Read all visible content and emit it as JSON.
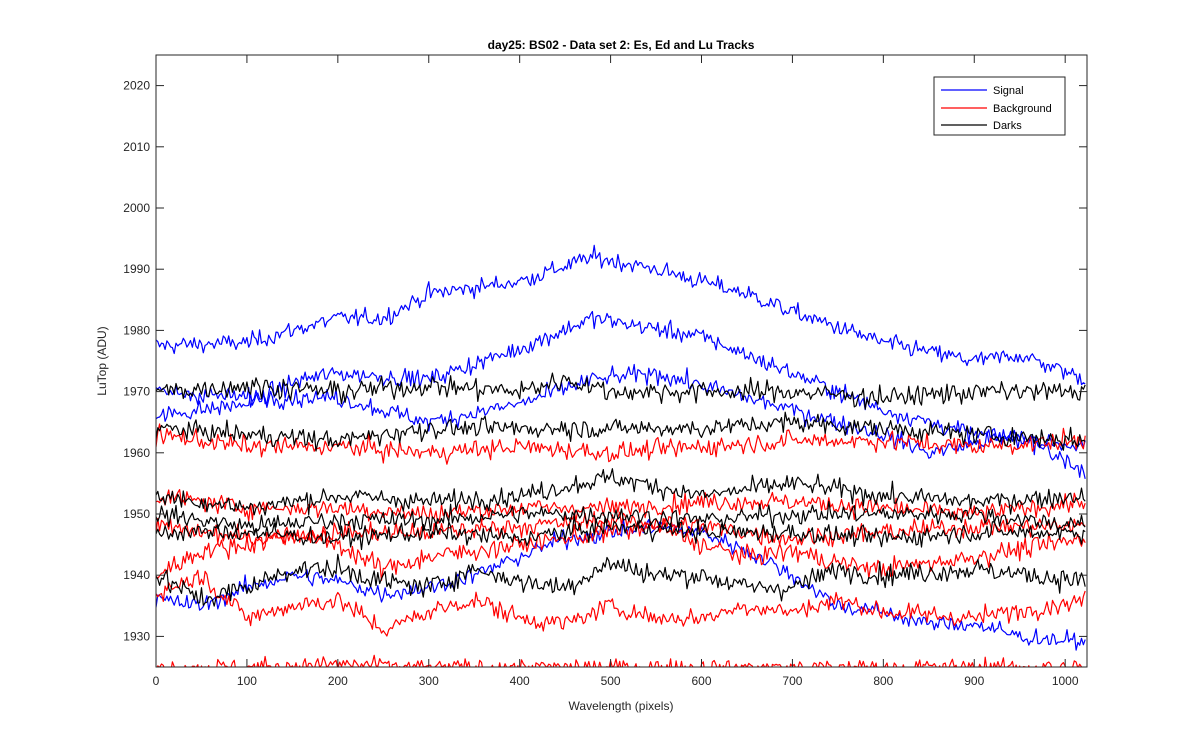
{
  "chart_data": {
    "type": "line",
    "title": "day25: BS02 - Data set 2: Es, Ed and Lu Tracks",
    "xlabel": "Wavelength (pixels)",
    "ylabel": "LuTop (ADU)",
    "xlim": [
      0,
      1024
    ],
    "ylim": [
      1925,
      2025
    ],
    "x_start": 0,
    "x_end": 1023,
    "x_step": 2,
    "xticks": [
      0,
      100,
      200,
      300,
      400,
      500,
      600,
      700,
      800,
      900,
      1000
    ],
    "yticks": [
      1930,
      1940,
      1950,
      1960,
      1970,
      1980,
      1990,
      2000,
      2010,
      2020
    ],
    "grid": false,
    "legend": {
      "placement": "top-right",
      "entries": [
        "Signal",
        "Background",
        "Darks"
      ]
    },
    "colors": {
      "Signal": "#0000ff",
      "Background": "#ff0000",
      "Darks": "#000000"
    },
    "series": [
      {
        "group": "Signal",
        "noise": 1.0,
        "knots": [
          [
            0,
            1977.5
          ],
          [
            100,
            1978
          ],
          [
            150,
            1980
          ],
          [
            200,
            1982
          ],
          [
            250,
            1982
          ],
          [
            300,
            1986
          ],
          [
            400,
            1988
          ],
          [
            480,
            1992
          ],
          [
            550,
            1990
          ],
          [
            650,
            1986
          ],
          [
            700,
            1983
          ],
          [
            800,
            1978
          ],
          [
            900,
            1975
          ],
          [
            950,
            1976
          ],
          [
            1023,
            1972
          ]
        ]
      },
      {
        "group": "Signal",
        "noise": 1.0,
        "knots": [
          [
            0,
            1966
          ],
          [
            100,
            1968
          ],
          [
            160,
            1972
          ],
          [
            200,
            1973
          ],
          [
            300,
            1972
          ],
          [
            400,
            1977
          ],
          [
            480,
            1982
          ],
          [
            600,
            1979
          ],
          [
            700,
            1973
          ],
          [
            800,
            1967
          ],
          [
            900,
            1963
          ],
          [
            1023,
            1961
          ]
        ]
      },
      {
        "group": "Signal",
        "noise": 1.0,
        "knots": [
          [
            0,
            1970
          ],
          [
            100,
            1969
          ],
          [
            200,
            1969
          ],
          [
            300,
            1965
          ],
          [
            400,
            1968
          ],
          [
            480,
            1972
          ],
          [
            550,
            1973
          ],
          [
            600,
            1971
          ],
          [
            700,
            1967
          ],
          [
            800,
            1963
          ],
          [
            850,
            1960
          ],
          [
            950,
            1963
          ],
          [
            1023,
            1957
          ]
        ]
      },
      {
        "group": "Signal",
        "noise": 1.0,
        "knots": [
          [
            0,
            1936
          ],
          [
            50,
            1935
          ],
          [
            100,
            1938
          ],
          [
            150,
            1940
          ],
          [
            200,
            1939
          ],
          [
            250,
            1937
          ],
          [
            300,
            1938
          ],
          [
            350,
            1940
          ],
          [
            400,
            1943
          ],
          [
            450,
            1946
          ],
          [
            500,
            1947
          ],
          [
            550,
            1948
          ],
          [
            600,
            1947
          ],
          [
            650,
            1944
          ],
          [
            700,
            1940
          ],
          [
            750,
            1935
          ],
          [
            800,
            1934
          ],
          [
            850,
            1932
          ],
          [
            900,
            1932
          ],
          [
            950,
            1930
          ],
          [
            1023,
            1929
          ]
        ]
      },
      {
        "group": "Background",
        "noise": 1.1,
        "knots": [
          [
            0,
            1963
          ],
          [
            100,
            1961
          ],
          [
            200,
            1961
          ],
          [
            300,
            1960
          ],
          [
            400,
            1961
          ],
          [
            500,
            1960
          ],
          [
            600,
            1961
          ],
          [
            700,
            1962
          ],
          [
            800,
            1962
          ],
          [
            900,
            1961
          ],
          [
            1023,
            1962
          ]
        ]
      },
      {
        "group": "Background",
        "noise": 1.1,
        "knots": [
          [
            0,
            1953
          ],
          [
            100,
            1951
          ],
          [
            200,
            1951
          ],
          [
            300,
            1950
          ],
          [
            400,
            1951
          ],
          [
            500,
            1951
          ],
          [
            600,
            1952
          ],
          [
            700,
            1952
          ],
          [
            800,
            1951
          ],
          [
            900,
            1950
          ],
          [
            1023,
            1952
          ]
        ]
      },
      {
        "group": "Background",
        "noise": 1.1,
        "knots": [
          [
            0,
            1948
          ],
          [
            100,
            1946
          ],
          [
            200,
            1947
          ],
          [
            300,
            1947
          ],
          [
            400,
            1948
          ],
          [
            500,
            1949
          ],
          [
            600,
            1948
          ],
          [
            700,
            1946
          ],
          [
            800,
            1947
          ],
          [
            900,
            1948
          ],
          [
            1023,
            1948
          ]
        ]
      },
      {
        "group": "Background",
        "noise": 1.1,
        "knots": [
          [
            0,
            1940
          ],
          [
            50,
            1944
          ],
          [
            100,
            1945
          ],
          [
            150,
            1947
          ],
          [
            200,
            1945
          ],
          [
            250,
            1941
          ],
          [
            300,
            1943
          ],
          [
            400,
            1945
          ],
          [
            500,
            1947
          ],
          [
            550,
            1948
          ],
          [
            600,
            1945
          ],
          [
            650,
            1943
          ],
          [
            700,
            1944
          ],
          [
            750,
            1942
          ],
          [
            800,
            1941
          ],
          [
            900,
            1943
          ],
          [
            1023,
            1946
          ]
        ]
      },
      {
        "group": "Background",
        "noise": 1.1,
        "knots": [
          [
            0,
            1937
          ],
          [
            50,
            1940
          ],
          [
            100,
            1933
          ],
          [
            150,
            1935
          ],
          [
            200,
            1936
          ],
          [
            250,
            1931
          ],
          [
            300,
            1934
          ],
          [
            350,
            1936
          ],
          [
            400,
            1933
          ],
          [
            450,
            1932
          ],
          [
            500,
            1935
          ],
          [
            550,
            1933
          ],
          [
            600,
            1933
          ],
          [
            650,
            1935
          ],
          [
            700,
            1934
          ],
          [
            750,
            1936
          ],
          [
            800,
            1934
          ],
          [
            900,
            1933
          ],
          [
            1023,
            1936
          ]
        ]
      },
      {
        "group": "Background",
        "noise": 0.9,
        "knots": [
          [
            0,
            1925
          ],
          [
            100,
            1925
          ],
          [
            200,
            1925.5
          ],
          [
            300,
            1925
          ],
          [
            400,
            1925
          ],
          [
            500,
            1925
          ],
          [
            600,
            1925
          ],
          [
            700,
            1925
          ],
          [
            800,
            1925
          ],
          [
            900,
            1925
          ],
          [
            1023,
            1925
          ]
        ]
      },
      {
        "group": "Darks",
        "noise": 1.2,
        "knots": [
          [
            0,
            1970
          ],
          [
            100,
            1971
          ],
          [
            200,
            1970
          ],
          [
            300,
            1971
          ],
          [
            400,
            1970
          ],
          [
            450,
            1972
          ],
          [
            500,
            1970
          ],
          [
            600,
            1970
          ],
          [
            700,
            1970
          ],
          [
            800,
            1969
          ],
          [
            900,
            1970
          ],
          [
            1023,
            1970
          ]
        ]
      },
      {
        "group": "Darks",
        "noise": 1.1,
        "knots": [
          [
            0,
            1964
          ],
          [
            100,
            1963
          ],
          [
            200,
            1962
          ],
          [
            300,
            1964
          ],
          [
            400,
            1964
          ],
          [
            500,
            1964
          ],
          [
            600,
            1964
          ],
          [
            700,
            1965
          ],
          [
            800,
            1964
          ],
          [
            900,
            1963
          ],
          [
            1023,
            1962
          ]
        ]
      },
      {
        "group": "Darks",
        "noise": 1.1,
        "knots": [
          [
            0,
            1953
          ],
          [
            100,
            1951
          ],
          [
            200,
            1953
          ],
          [
            300,
            1952
          ],
          [
            400,
            1953
          ],
          [
            500,
            1956
          ],
          [
            600,
            1953
          ],
          [
            700,
            1955
          ],
          [
            800,
            1953
          ],
          [
            900,
            1952
          ],
          [
            1023,
            1953
          ]
        ]
      },
      {
        "group": "Darks",
        "noise": 1.1,
        "knots": [
          [
            0,
            1950
          ],
          [
            100,
            1948
          ],
          [
            200,
            1949
          ],
          [
            300,
            1949
          ],
          [
            400,
            1950
          ],
          [
            500,
            1950
          ],
          [
            600,
            1949
          ],
          [
            700,
            1950
          ],
          [
            800,
            1950
          ],
          [
            900,
            1950
          ],
          [
            1023,
            1948
          ]
        ]
      },
      {
        "group": "Darks",
        "noise": 1.1,
        "knots": [
          [
            0,
            1947
          ],
          [
            100,
            1947
          ],
          [
            200,
            1946
          ],
          [
            300,
            1947
          ],
          [
            400,
            1946
          ],
          [
            500,
            1948
          ],
          [
            600,
            1947
          ],
          [
            700,
            1947
          ],
          [
            800,
            1946
          ],
          [
            900,
            1947
          ],
          [
            1023,
            1947
          ]
        ]
      },
      {
        "group": "Darks",
        "noise": 1.2,
        "knots": [
          [
            0,
            1940
          ],
          [
            50,
            1936
          ],
          [
            100,
            1938
          ],
          [
            150,
            1941
          ],
          [
            200,
            1941
          ],
          [
            250,
            1939
          ],
          [
            300,
            1938
          ],
          [
            350,
            1941
          ],
          [
            400,
            1939
          ],
          [
            450,
            1938
          ],
          [
            500,
            1942
          ],
          [
            550,
            1940
          ],
          [
            600,
            1940
          ],
          [
            650,
            1938
          ],
          [
            700,
            1938
          ],
          [
            750,
            1941
          ],
          [
            800,
            1940
          ],
          [
            900,
            1941
          ],
          [
            1023,
            1939
          ]
        ]
      }
    ]
  }
}
